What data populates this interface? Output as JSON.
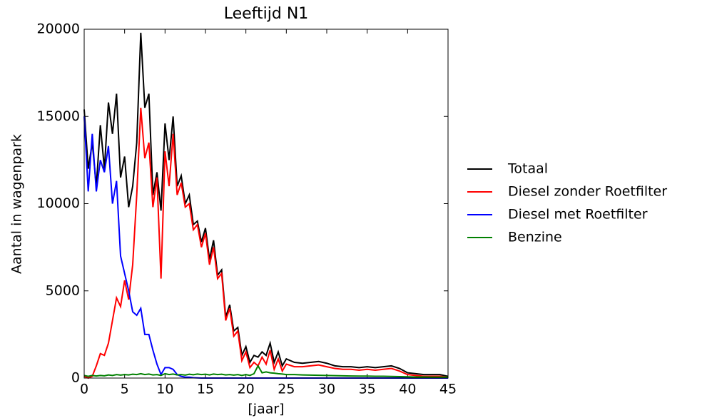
{
  "chart_data": {
    "type": "line",
    "title": "Leeftijd N1",
    "xlabel": "[jaar]",
    "ylabel": "Aantal in wagenpark",
    "x": [
      0,
      0.5,
      1,
      1.5,
      2,
      2.5,
      3,
      3.5,
      4,
      4.5,
      5,
      5.5,
      6,
      6.5,
      7,
      7.5,
      8,
      8.5,
      9,
      9.5,
      10,
      10.5,
      11,
      11.5,
      12,
      12.5,
      13,
      13.5,
      14,
      14.5,
      15,
      15.5,
      16,
      16.5,
      17,
      17.5,
      18,
      18.5,
      19,
      19.5,
      20,
      20.5,
      21,
      21.5,
      22,
      22.5,
      23,
      23.5,
      24,
      24.5,
      25,
      26,
      27,
      28,
      29,
      30,
      31,
      32,
      33,
      34,
      35,
      36,
      37,
      38,
      39,
      40,
      41,
      42,
      43,
      44,
      45
    ],
    "series": [
      {
        "name": "Totaal",
        "color": "#000000",
        "values": [
          15400,
          12000,
          13500,
          11000,
          14500,
          12000,
          15800,
          14000,
          16300,
          11500,
          12700,
          9800,
          11000,
          13500,
          19800,
          15500,
          16300,
          10500,
          11800,
          9600,
          14600,
          12500,
          15000,
          11000,
          11600,
          10000,
          10500,
          8800,
          9000,
          7800,
          8600,
          6800,
          7900,
          5900,
          6200,
          3500,
          4200,
          2700,
          2900,
          1300,
          1800,
          900,
          1300,
          1200,
          1500,
          1300,
          2000,
          900,
          1500,
          700,
          1100,
          900,
          850,
          900,
          950,
          850,
          700,
          650,
          650,
          600,
          650,
          600,
          650,
          700,
          550,
          300,
          250,
          200,
          200,
          200,
          100
        ]
      },
      {
        "name": "Diesel zonder Roetfilter",
        "color": "#ff0000",
        "values": [
          100,
          0,
          100,
          700,
          1400,
          1300,
          2000,
          3300,
          4600,
          4100,
          5600,
          4500,
          6500,
          10500,
          15500,
          12600,
          13500,
          9800,
          11500,
          5700,
          13000,
          11000,
          14000,
          10500,
          11200,
          9800,
          10000,
          8500,
          8800,
          7500,
          8300,
          6500,
          7500,
          5700,
          6000,
          3300,
          4000,
          2400,
          2700,
          1000,
          1500,
          600,
          900,
          700,
          1200,
          800,
          1600,
          500,
          1100,
          400,
          800,
          650,
          650,
          700,
          750,
          650,
          550,
          500,
          500,
          450,
          500,
          450,
          500,
          550,
          400,
          200,
          150,
          100,
          100,
          100,
          50
        ]
      },
      {
        "name": "Diesel met Roetfilter",
        "color": "#0000ff",
        "values": [
          15000,
          10700,
          14000,
          10700,
          12500,
          11800,
          13300,
          10000,
          11300,
          7000,
          6000,
          5000,
          3800,
          3600,
          4000,
          2500,
          2500,
          1600,
          800,
          200,
          600,
          600,
          500,
          200,
          100,
          50,
          50,
          20,
          10,
          0,
          0,
          0,
          0,
          0,
          0,
          0,
          0,
          0,
          0,
          0,
          0,
          0,
          0,
          0,
          0,
          0,
          0,
          0,
          0,
          0,
          0,
          0,
          0,
          0,
          0,
          0,
          0,
          0,
          0,
          0,
          0,
          0,
          0,
          0,
          0,
          0,
          0,
          0,
          0,
          0,
          0
        ]
      },
      {
        "name": "Benzine",
        "color": "#008000",
        "values": [
          150,
          100,
          150,
          120,
          150,
          130,
          180,
          150,
          200,
          170,
          200,
          180,
          220,
          200,
          250,
          200,
          230,
          180,
          200,
          150,
          250,
          200,
          230,
          180,
          200,
          170,
          220,
          190,
          230,
          200,
          220,
          180,
          230,
          200,
          220,
          180,
          200,
          170,
          200,
          150,
          200,
          150,
          250,
          700,
          300,
          350,
          300,
          280,
          250,
          230,
          200,
          200,
          180,
          170,
          160,
          150,
          140,
          130,
          120,
          110,
          110,
          100,
          100,
          90,
          80,
          70,
          60,
          60,
          50,
          50,
          50
        ]
      }
    ],
    "xlim": [
      0,
      45
    ],
    "xticks": [
      0,
      5,
      10,
      15,
      20,
      25,
      30,
      35,
      40,
      45
    ],
    "ylim": [
      0,
      20000
    ],
    "yticks": [
      0,
      5000,
      10000,
      15000,
      20000
    ],
    "legend": "right"
  }
}
